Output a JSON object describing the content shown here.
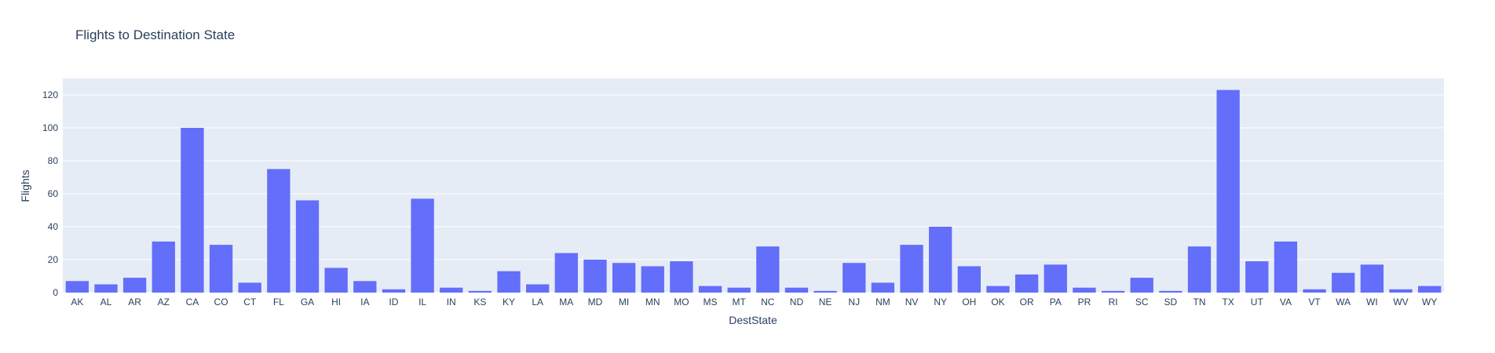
{
  "chart_data": {
    "type": "bar",
    "title": "Flights to Destination State",
    "xlabel": "DestState",
    "ylabel": "Flights",
    "ylim": [
      0,
      130
    ],
    "yticks": [
      0,
      20,
      40,
      60,
      80,
      100,
      120
    ],
    "grid": true,
    "legend": "none",
    "categories": [
      "AK",
      "AL",
      "AR",
      "AZ",
      "CA",
      "CO",
      "CT",
      "FL",
      "GA",
      "HI",
      "IA",
      "ID",
      "IL",
      "IN",
      "KS",
      "KY",
      "LA",
      "MA",
      "MD",
      "MI",
      "MN",
      "MO",
      "MS",
      "MT",
      "NC",
      "ND",
      "NE",
      "NJ",
      "NM",
      "NV",
      "NY",
      "OH",
      "OK",
      "OR",
      "PA",
      "PR",
      "RI",
      "SC",
      "SD",
      "TN",
      "TX",
      "UT",
      "VA",
      "VT",
      "WA",
      "WI",
      "WV",
      "WY"
    ],
    "values": [
      7,
      5,
      9,
      31,
      100,
      29,
      6,
      75,
      56,
      15,
      7,
      2,
      57,
      3,
      1,
      13,
      5,
      24,
      20,
      18,
      16,
      19,
      4,
      3,
      28,
      3,
      1,
      18,
      6,
      29,
      40,
      16,
      4,
      11,
      17,
      3,
      1,
      9,
      1,
      28,
      123,
      19,
      31,
      2,
      12,
      17,
      2,
      4
    ],
    "colors": {
      "bar": "#636efa",
      "plot_bg": "#e5ecf6",
      "text": "#2a3f5f",
      "grid": "#ffffff"
    }
  }
}
